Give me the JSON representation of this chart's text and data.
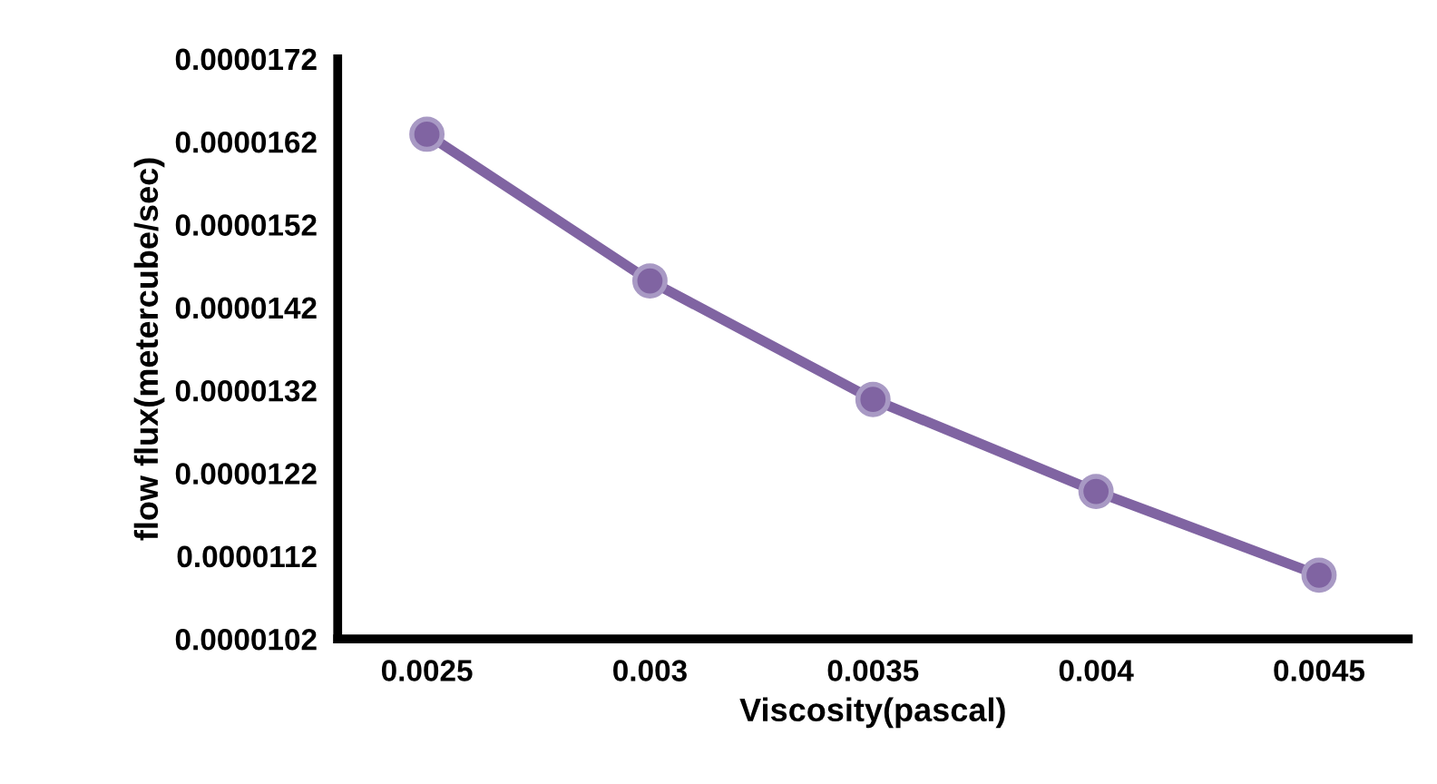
{
  "chart_data": {
    "type": "line",
    "xlabel": "Viscosity(pascal)",
    "ylabel": "flow flux(metercube/sec)",
    "x": [
      0.0025,
      0.003,
      0.0035,
      0.004,
      0.0045
    ],
    "series": [
      {
        "color": "#8064a2",
        "values": [
          1.629e-05,
          1.452e-05,
          1.309e-05,
          1.198e-05,
          1.097e-05
        ]
      }
    ],
    "xlim": [
      0.0023,
      0.0047
    ],
    "xticks": [
      0.0025,
      0.003,
      0.0035,
      0.004,
      0.0045
    ],
    "ylim": [
      1.02e-05,
      1.72e-05
    ],
    "yticks": [
      {
        "value": 1.02e-05,
        "label": "0.0000102"
      },
      {
        "value": 1.12e-05,
        "label": "0.0000112"
      },
      {
        "value": 1.22e-05,
        "label": "0.0000122"
      },
      {
        "value": 1.32e-05,
        "label": "0.0000132"
      },
      {
        "value": 1.42e-05,
        "label": "0.0000142"
      },
      {
        "value": 1.52e-05,
        "label": "0.0000152"
      },
      {
        "value": 1.62e-05,
        "label": "0.0000162"
      },
      {
        "value": 1.72e-05,
        "label": "0.0000172"
      }
    ],
    "grid": false,
    "legend": false,
    "marker": "circle",
    "line_style": "solid"
  }
}
